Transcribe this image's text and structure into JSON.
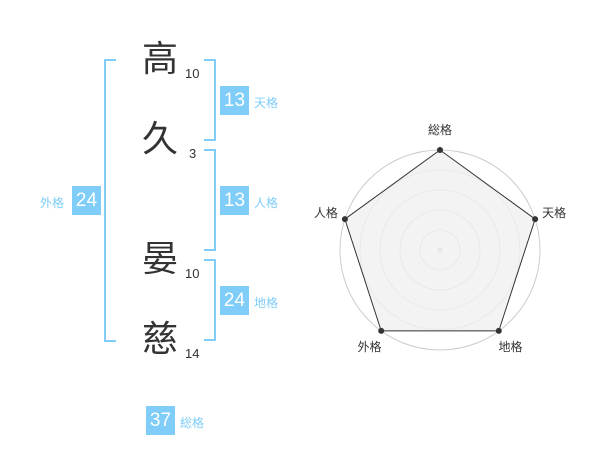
{
  "name": {
    "chars": [
      {
        "char": "高",
        "strokes": "10"
      },
      {
        "char": "久",
        "strokes": "3"
      },
      {
        "char": "晏",
        "strokes": "10"
      },
      {
        "char": "慈",
        "strokes": "14"
      }
    ]
  },
  "kaku": {
    "tenkaku": {
      "label": "天格",
      "value": "13"
    },
    "jinkaku": {
      "label": "人格",
      "value": "13"
    },
    "chikaku": {
      "label": "地格",
      "value": "24"
    },
    "gaikaku": {
      "label": "外格",
      "value": "24"
    },
    "soukaku": {
      "label": "総格",
      "value": "37"
    }
  },
  "colors": {
    "accent": "#7fcdf8",
    "polygon_fill": "#f0f0f0",
    "polygon_stroke": "#333333",
    "ring": "#cccccc"
  },
  "chart_data": {
    "type": "radar",
    "axes": [
      "総格",
      "天格",
      "地格",
      "外格",
      "人格"
    ],
    "values": [
      5,
      5,
      5,
      5,
      5
    ],
    "range": [
      0,
      5
    ],
    "rings": 5
  }
}
